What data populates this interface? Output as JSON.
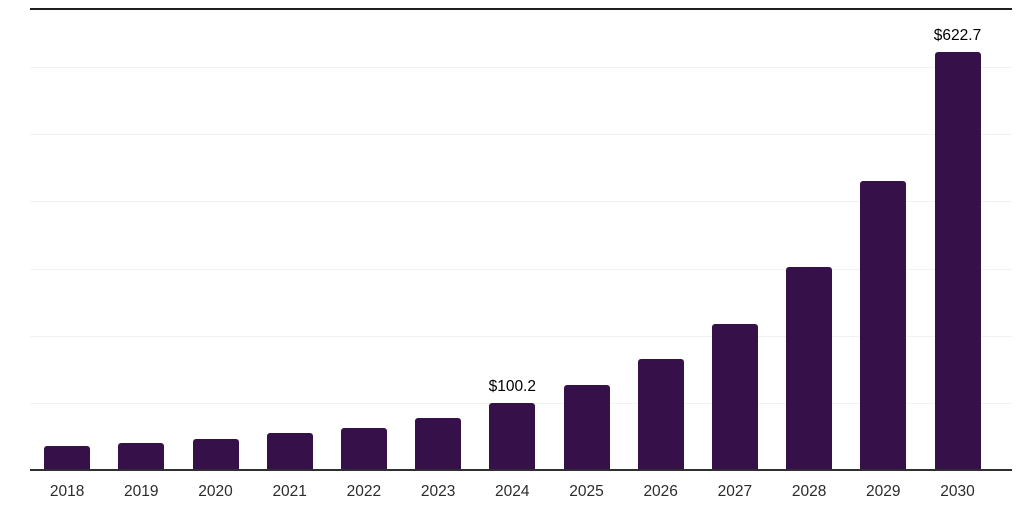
{
  "chart_data": {
    "type": "bar",
    "title": "",
    "xlabel": "",
    "ylabel": "",
    "categories": [
      "2018",
      "2019",
      "2020",
      "2021",
      "2022",
      "2023",
      "2024",
      "2025",
      "2026",
      "2027",
      "2028",
      "2029",
      "2030"
    ],
    "values": [
      35.4,
      40.7,
      46.3,
      54.6,
      62.7,
      78.0,
      100.2,
      126.8,
      165.0,
      217.0,
      302.1,
      430.2,
      622.7
    ],
    "bar_labels": [
      "",
      "",
      "",
      "",
      "",
      "",
      "$100.2",
      "",
      "",
      "",
      "",
      "",
      "$622.7"
    ],
    "ylim": [
      0,
      650
    ],
    "gridline_values": [
      100,
      200,
      300,
      400,
      500,
      600
    ],
    "grid_on": true,
    "legend_position": "none",
    "colors": {
      "bar": "#361149",
      "axis_line": "#2f2f2f",
      "top_border": "#1f1f1f",
      "gridline": "#f2f2f2",
      "tick_text": "#2b2b2b",
      "label_text": "#000000",
      "background": "#ffffff"
    }
  }
}
